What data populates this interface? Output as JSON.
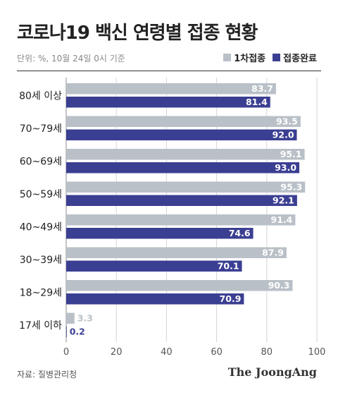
{
  "header": {
    "title": "코로나19 백신 연령별 접종 현황",
    "unit": "단위: %, 10월 24일 0시 기준"
  },
  "footer": {
    "source": "자료: 질병관리청",
    "brand": "The JoongAng"
  },
  "colors": {
    "first_dose": "#b9c0c7",
    "fully_vaccinated": "#3b3f92"
  },
  "chart_data": {
    "type": "bar",
    "orientation": "horizontal",
    "categories": [
      "80세 이상",
      "70~79세",
      "60~69세",
      "50~59세",
      "40~49세",
      "30~39세",
      "18~29세",
      "17세 이하"
    ],
    "series": [
      {
        "name": "1차접종",
        "values": [
          83.7,
          93.5,
          95.1,
          95.3,
          91.4,
          87.9,
          90.3,
          3.3
        ]
      },
      {
        "name": "접종완료",
        "values": [
          81.4,
          92.0,
          93.0,
          92.1,
          74.6,
          70.1,
          70.9,
          0.2
        ]
      }
    ],
    "value_labels": [
      [
        "83.7",
        "93.5",
        "95.1",
        "95.3",
        "91.4",
        "87.9",
        "90.3",
        "3.3"
      ],
      [
        "81.4",
        "92.0",
        "93.0",
        "92.1",
        "74.6",
        "70.1",
        "70.9",
        "0.2"
      ]
    ],
    "xlim": [
      0,
      100
    ],
    "xticks": [
      "0",
      "20",
      "40",
      "60",
      "80",
      "100"
    ],
    "grid": true,
    "legend_position": "top-right"
  }
}
